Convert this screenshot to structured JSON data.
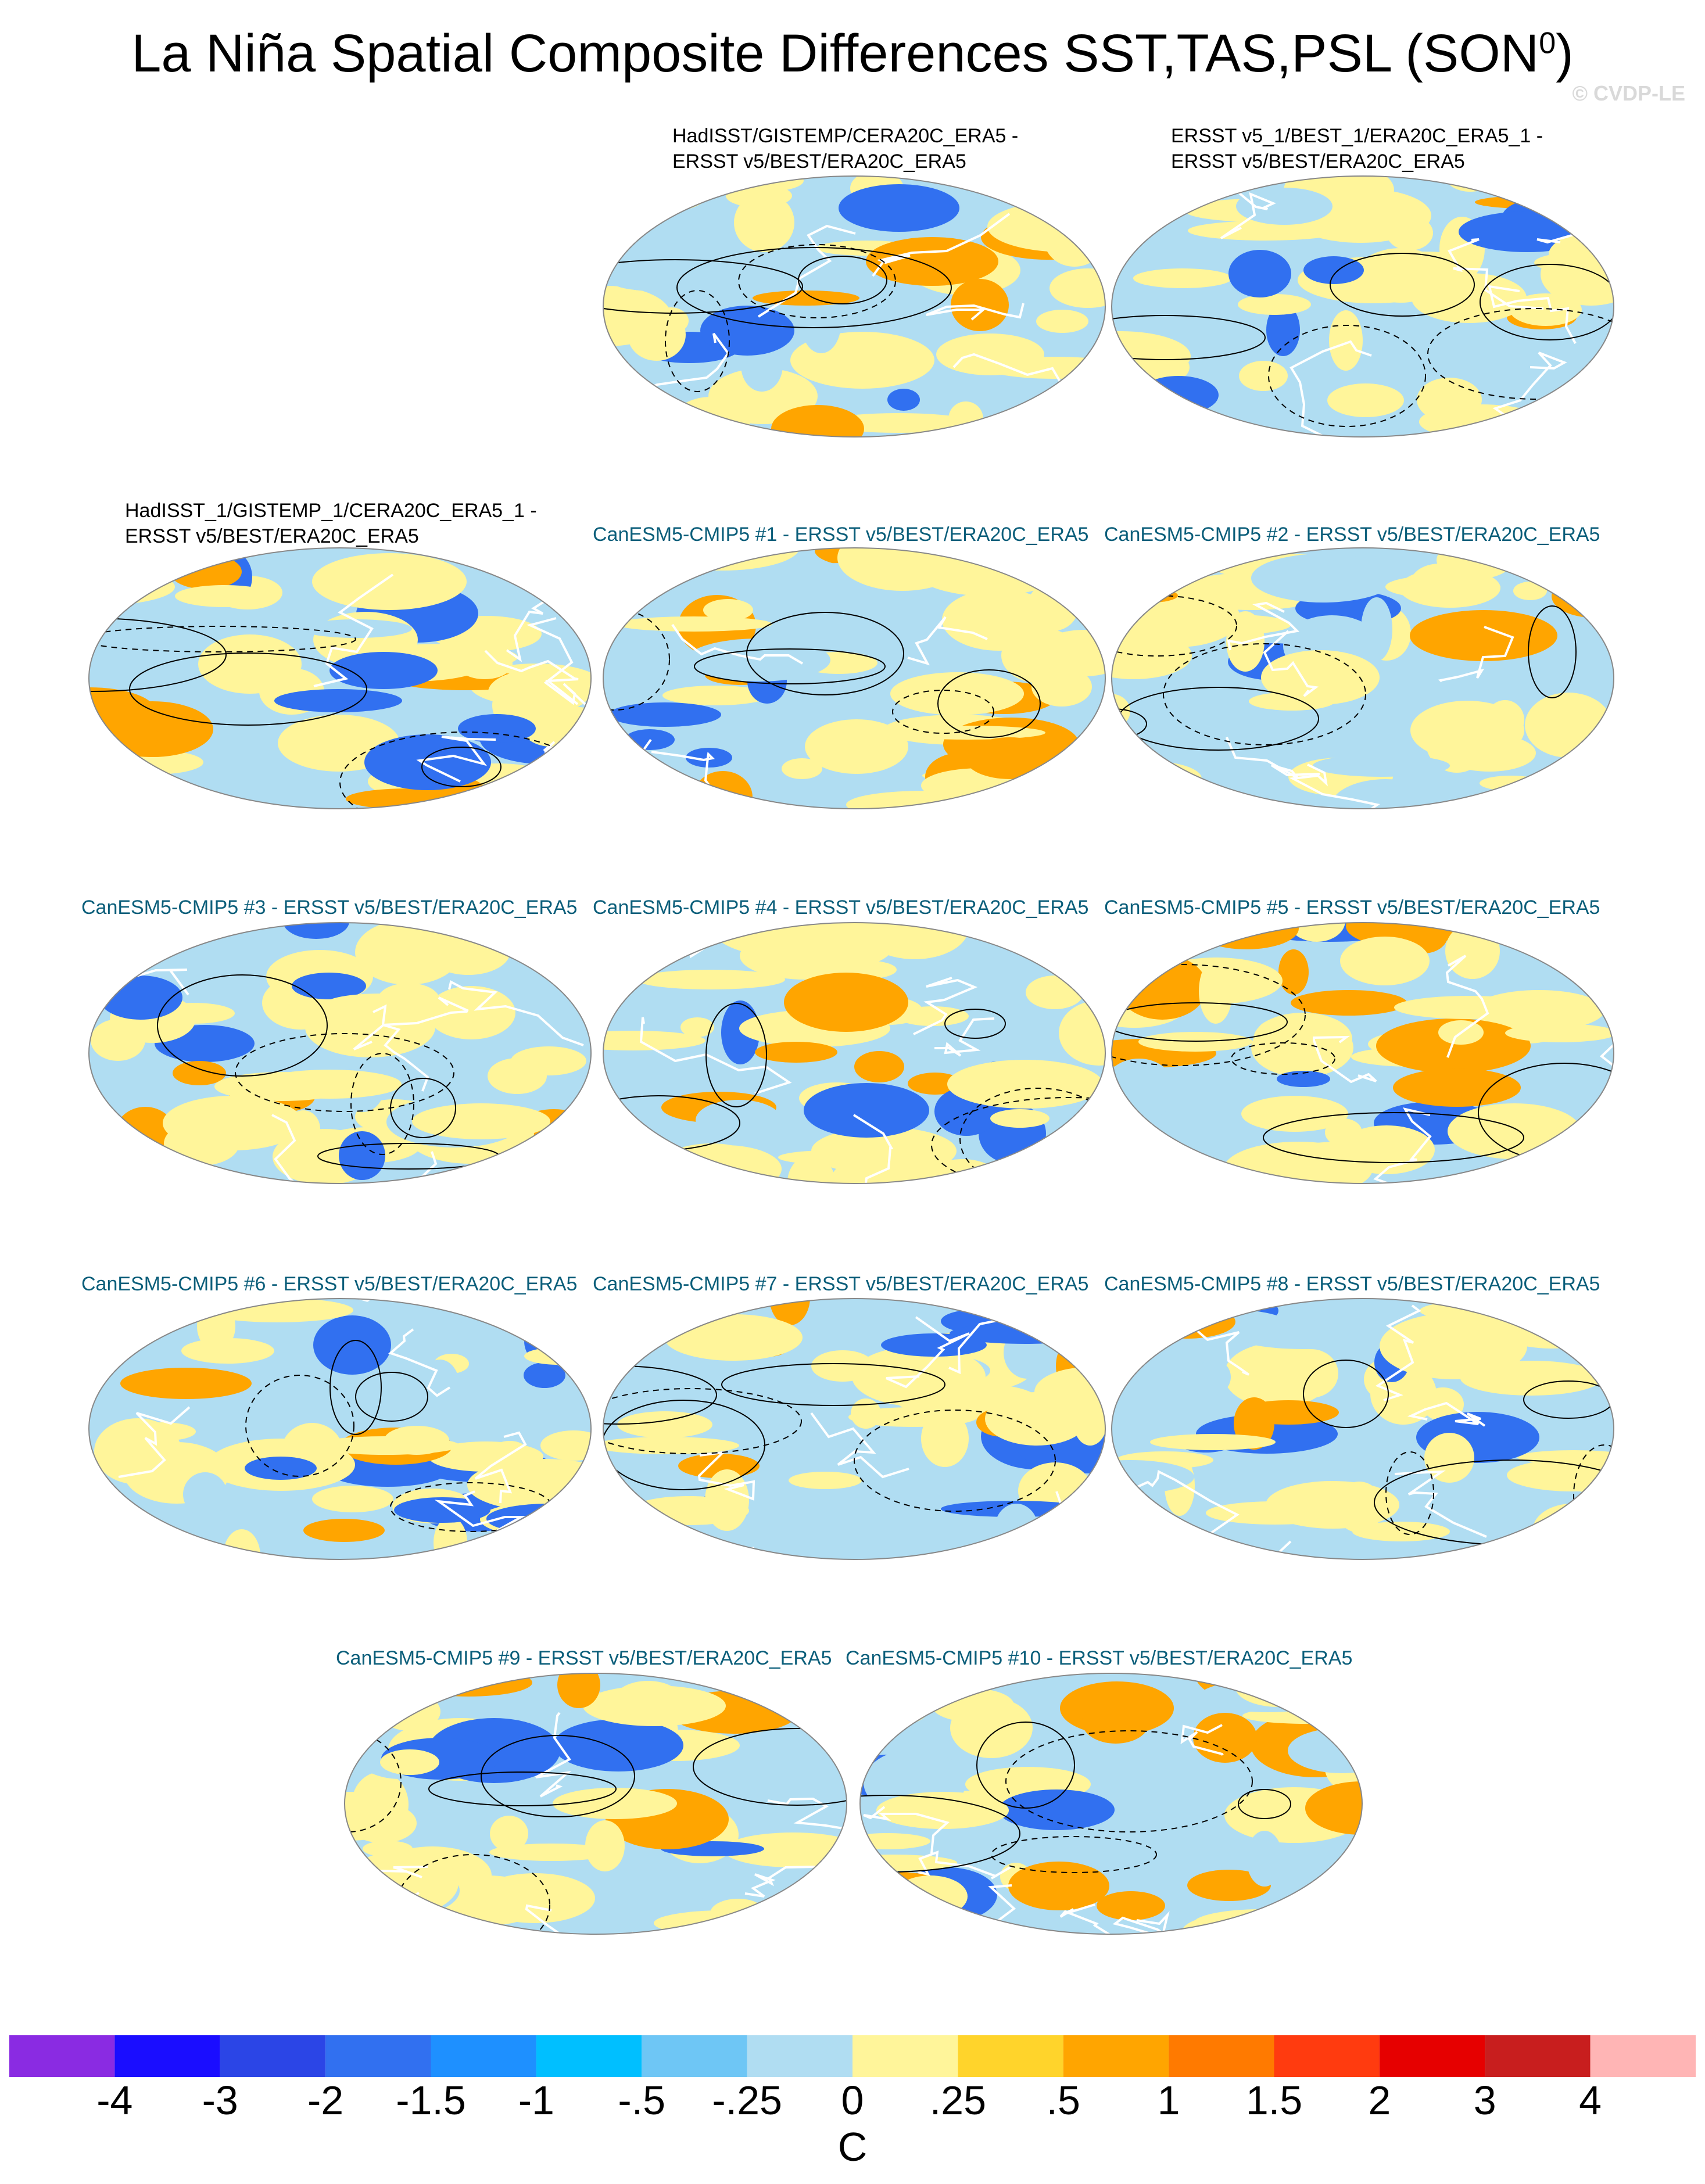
{
  "title": "La Niña Spatial Composite Differences SST,TAS,PSL (SON",
  "title_superscript": "0",
  "title_close": ")",
  "watermark": "© CVDP-LE",
  "panels": [
    {
      "title_line1": "HadISST/GISTEMP/CERA20C_ERA5 -",
      "title_line2": "ERSST v5/BEST/ERA20C_ERA5",
      "style": "obs"
    },
    {
      "title_line1": "ERSST v5_1/BEST_1/ERA20C_ERA5_1 -",
      "title_line2": "ERSST v5/BEST/ERA20C_ERA5",
      "style": "obs"
    },
    {
      "title_line1": "HadISST_1/GISTEMP_1/CERA20C_ERA5_1 -",
      "title_line2": "ERSST v5/BEST/ERA20C_ERA5",
      "style": "obs"
    },
    {
      "title_line1": "CanESM5-CMIP5 #1 - ERSST v5/BEST/ERA20C_ERA5",
      "title_line2": "",
      "style": "model"
    },
    {
      "title_line1": "CanESM5-CMIP5 #2 - ERSST v5/BEST/ERA20C_ERA5",
      "title_line2": "",
      "style": "model"
    },
    {
      "title_line1": "CanESM5-CMIP5 #3 - ERSST v5/BEST/ERA20C_ERA5",
      "title_line2": "",
      "style": "model"
    },
    {
      "title_line1": "CanESM5-CMIP5 #4 - ERSST v5/BEST/ERA20C_ERA5",
      "title_line2": "",
      "style": "model"
    },
    {
      "title_line1": "CanESM5-CMIP5 #5 - ERSST v5/BEST/ERA20C_ERA5",
      "title_line2": "",
      "style": "model"
    },
    {
      "title_line1": "CanESM5-CMIP5 #6 - ERSST v5/BEST/ERA20C_ERA5",
      "title_line2": "",
      "style": "model"
    },
    {
      "title_line1": "CanESM5-CMIP5 #7 - ERSST v5/BEST/ERA20C_ERA5",
      "title_line2": "",
      "style": "model"
    },
    {
      "title_line1": "CanESM5-CMIP5 #8 - ERSST v5/BEST/ERA20C_ERA5",
      "title_line2": "",
      "style": "model"
    },
    {
      "title_line1": "CanESM5-CMIP5 #9 - ERSST v5/BEST/ERA20C_ERA5",
      "title_line2": "",
      "style": "model"
    },
    {
      "title_line1": "CanESM5-CMIP5 #10 - ERSST v5/BEST/ERA20C_ERA5",
      "title_line2": "",
      "style": "model"
    }
  ],
  "colorbar": {
    "colors": [
      "#8a2be2",
      "#1a0dff",
      "#2b45e6",
      "#3170f0",
      "#1e90ff",
      "#00bfff",
      "#6ec6f5",
      "#b0ddf2",
      "#fff59a",
      "#ffd42b",
      "#ffa500",
      "#ff7a00",
      "#ff3b0f",
      "#e60000",
      "#c81e1e",
      "#ffb5b5"
    ],
    "labels": [
      "-4",
      "-3",
      "-2",
      "-1.5",
      "-1",
      "-.5",
      "-.25",
      "0",
      ".25",
      ".5",
      "1",
      "1.5",
      "2",
      "3",
      "4"
    ],
    "units": "C"
  },
  "palette": {
    "cool": "#b0ddf2",
    "warm": "#fff59a",
    "orange": "#ffa500",
    "blue": "#3170f0",
    "land_outline": "#ffffff",
    "contour": "#000000",
    "model_title": "#0b5e7a"
  }
}
